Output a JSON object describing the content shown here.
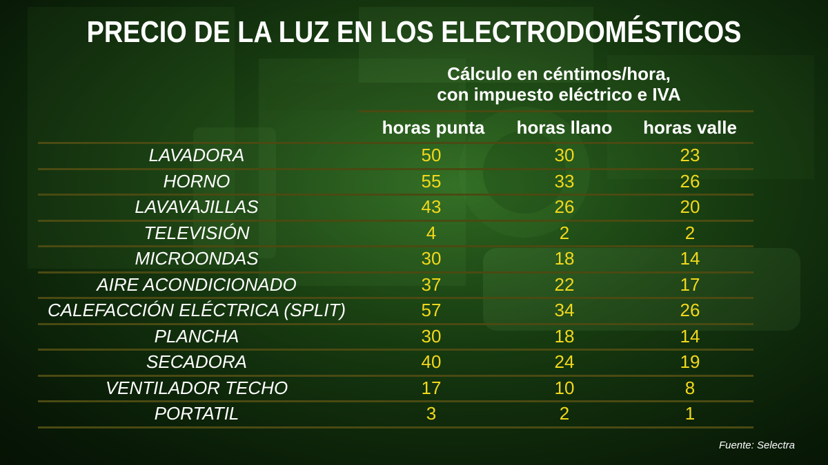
{
  "title": "PRECIO DE LA LUZ EN LOS ELECTRODOMÉSTICOS",
  "subtitle_line1": "Cálculo en céntimos/hora,",
  "subtitle_line2": "con impuesto eléctrico e IVA",
  "source": "Fuente: Selectra",
  "colors": {
    "text": "#ffffff",
    "values": "#f2d81c",
    "rules": "#4a4a12"
  },
  "chart_data": {
    "type": "table",
    "title": "PRECIO DE LA LUZ EN LOS ELECTRODOMÉSTICOS",
    "subtitle": "Cálculo en céntimos/hora, con impuesto eléctrico e IVA",
    "columns": [
      "horas punta",
      "horas llano",
      "horas valle"
    ],
    "rows": [
      {
        "label": "LAVADORA",
        "values": [
          50,
          30,
          23
        ]
      },
      {
        "label": "HORNO",
        "values": [
          55,
          33,
          26
        ]
      },
      {
        "label": "LAVAVAJILLAS",
        "values": [
          43,
          26,
          20
        ]
      },
      {
        "label": "TELEVISIÓN",
        "values": [
          4,
          2,
          2
        ]
      },
      {
        "label": "MICROONDAS",
        "values": [
          30,
          18,
          14
        ]
      },
      {
        "label": "AIRE ACONDICIONADO",
        "values": [
          37,
          22,
          17
        ]
      },
      {
        "label": "CALEFACCIÓN ELÉCTRICA (SPLIT)",
        "values": [
          57,
          34,
          26
        ]
      },
      {
        "label": "PLANCHA",
        "values": [
          30,
          18,
          14
        ]
      },
      {
        "label": "SECADORA",
        "values": [
          40,
          24,
          19
        ]
      },
      {
        "label": "VENTILADOR TECHO",
        "values": [
          17,
          10,
          8
        ]
      },
      {
        "label": "PORTATIL",
        "values": [
          3,
          2,
          1
        ]
      }
    ]
  }
}
